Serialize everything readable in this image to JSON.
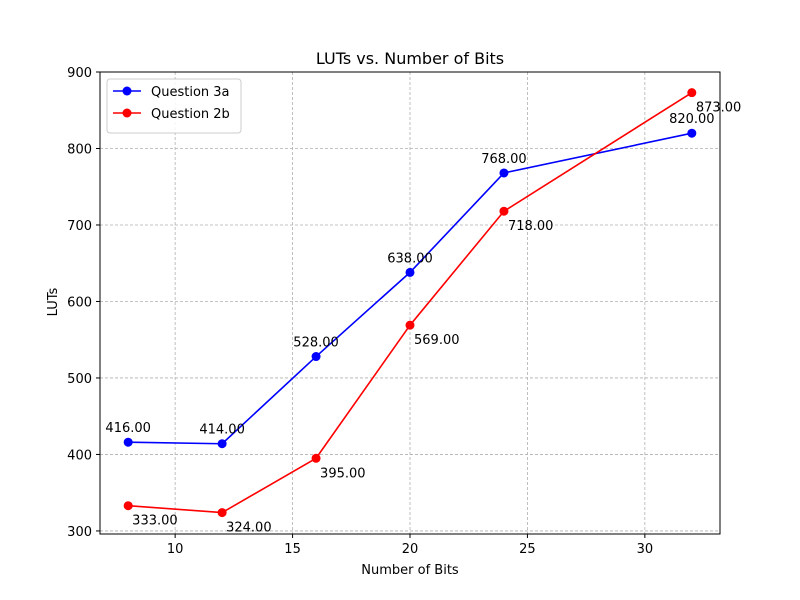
{
  "chart_data": {
    "type": "line",
    "title": "LUTs vs. Number of Bits",
    "xlabel": "Number of Bits",
    "ylabel": "LUTs",
    "xlim": [
      6.8,
      33.2
    ],
    "ylim": [
      296,
      900
    ],
    "xticks": [
      10,
      15,
      20,
      25,
      30
    ],
    "yticks": [
      300,
      400,
      500,
      600,
      700,
      800,
      900
    ],
    "grid": true,
    "legend_position": "upper-left",
    "series": [
      {
        "name": "Question 3a",
        "color": "#0000ff",
        "marker": "circle",
        "label_position": "above",
        "x": [
          8,
          12,
          16,
          20,
          24,
          32
        ],
        "y": [
          416,
          414,
          528,
          638,
          768,
          820
        ],
        "labels": [
          "416.00",
          "414.00",
          "528.00",
          "638.00",
          "768.00",
          "820.00"
        ]
      },
      {
        "name": "Question 2b",
        "color": "#ff0000",
        "marker": "circle",
        "label_position": "below-right",
        "x": [
          8,
          12,
          16,
          20,
          24,
          32
        ],
        "y": [
          333,
          324,
          395,
          569,
          718,
          873
        ],
        "labels": [
          "333.00",
          "324.00",
          "395.00",
          "569.00",
          "718.00",
          "873.00"
        ]
      }
    ]
  }
}
